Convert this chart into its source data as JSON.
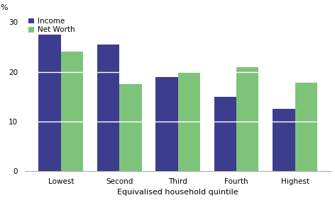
{
  "categories": [
    "Lowest",
    "Second",
    "Third",
    "Fourth",
    "Highest"
  ],
  "income": [
    27.5,
    25.5,
    19.0,
    15.0,
    12.5
  ],
  "net_worth": [
    24.0,
    17.5,
    19.8,
    20.9,
    17.8
  ],
  "income_color": "#3d3d8f",
  "net_worth_color": "#7dc47a",
  "bar_width": 0.38,
  "ylim": [
    0,
    31
  ],
  "yticks": [
    0,
    10,
    20,
    30
  ],
  "ylabel": "%",
  "xlabel": "Equivalised household quintile",
  "legend_labels": [
    "Income",
    "Net Worth"
  ],
  "background_color": "#ffffff",
  "tick_fontsize": 7.5,
  "label_fontsize": 8,
  "legend_fontsize": 7.5
}
